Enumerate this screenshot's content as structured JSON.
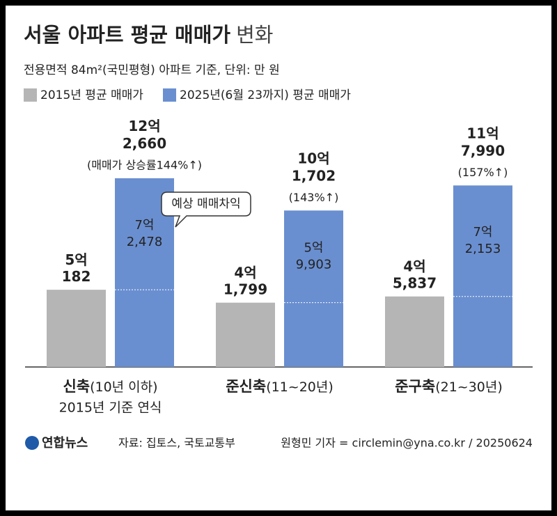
{
  "chart_data": {
    "type": "bar",
    "title": "서울 아파트 평균 매매가",
    "title_suffix": "변화",
    "subtitle": "전용면적 84m²(국민평형) 아파트 기준, 단위: 만 원",
    "categories": [
      "신축",
      "준신축",
      "준구축"
    ],
    "category_notes": [
      "(10년 이하)",
      "(11~20년)",
      "(21~30년)"
    ],
    "first_category_footnote": "2015년 기준 연식",
    "series": [
      {
        "name": "2015년 평균 매매가",
        "color": "#b5b5b5",
        "values": [
          50182,
          41799,
          45837
        ],
        "value_labels": [
          "5억\n182",
          "4억\n1,799",
          "4억\n5,837"
        ]
      },
      {
        "name": "2025년(6월 23까지) 평균 매매가",
        "color": "#6a8fd0",
        "values": [
          122660,
          101702,
          117990
        ],
        "value_labels": [
          "12억\n2,660",
          "10억\n1,702",
          "11억\n7,990"
        ],
        "change_labels": [
          "(매매가 상승률144%↑)",
          "(143%↑)",
          "(157%↑)"
        ]
      }
    ],
    "gains": {
      "values": [
        72478,
        59903,
        72153
      ],
      "value_labels": [
        "7억\n2,478",
        "5억\n9,903",
        "7억\n2,153"
      ]
    },
    "callout": "예상 매매차익",
    "footer": {
      "logo": "연합뉴스",
      "source": "자료: 집토스, 국토교통부",
      "credit": "원형민 기자 = circlemin@yna.co.kr / 20250624"
    }
  }
}
